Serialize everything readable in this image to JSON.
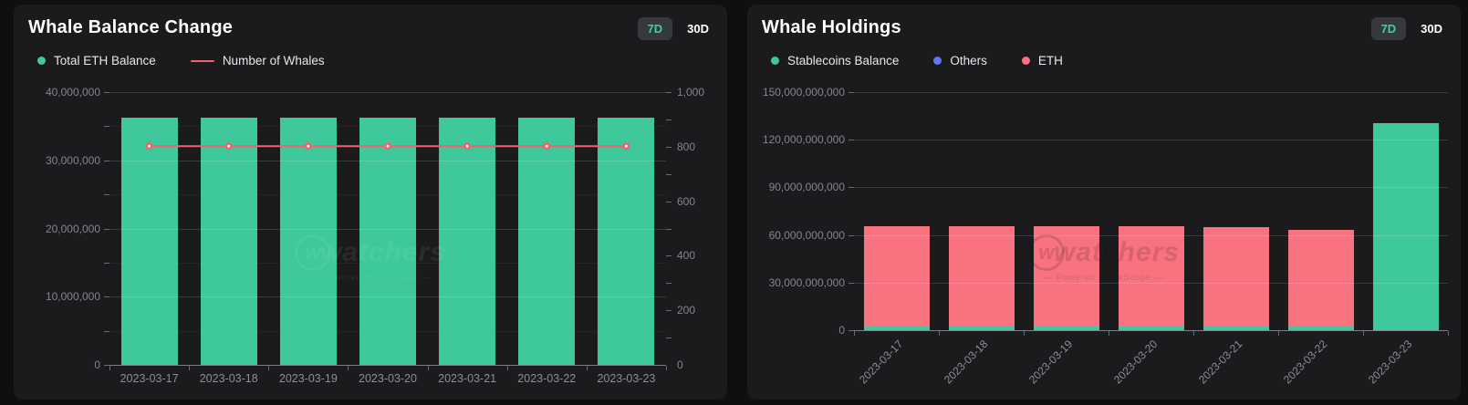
{
  "panels": [
    {
      "title": "Whale Balance Change",
      "buttons": [
        {
          "label": "7D",
          "active": true
        },
        {
          "label": "30D",
          "active": false
        }
      ],
      "legend": [
        {
          "label": "Total ETH Balance",
          "color": "#3ec89b",
          "icon": "dot"
        },
        {
          "label": "Number of Whales",
          "color": "#f4616f",
          "icon": "line"
        }
      ],
      "watermark": {
        "brand": "watchers",
        "sub": "— Powered By 0xScope —"
      }
    },
    {
      "title": "Whale Holdings",
      "buttons": [
        {
          "label": "7D",
          "active": true
        },
        {
          "label": "30D",
          "active": false
        }
      ],
      "legend": [
        {
          "label": "Stablecoins Balance",
          "color": "#3ec89b",
          "icon": "dot"
        },
        {
          "label": "Others",
          "color": "#5b79f2",
          "icon": "dot"
        },
        {
          "label": "ETH",
          "color": "#f8727f",
          "icon": "dot"
        }
      ],
      "watermark": {
        "brand": "watchers",
        "sub": "— Powered By 0xScope —"
      }
    }
  ],
  "chart_data": [
    {
      "type": "bar",
      "title": "Whale Balance Change",
      "categories": [
        "2023-03-17",
        "2023-03-18",
        "2023-03-19",
        "2023-03-20",
        "2023-03-21",
        "2023-03-22",
        "2023-03-23"
      ],
      "series": [
        {
          "name": "Total ETH Balance",
          "type": "bar",
          "axis": "left",
          "color": "#3ec89b",
          "values": [
            36280000,
            36280000,
            36280000,
            36280000,
            36280000,
            36280000,
            36280000
          ]
        },
        {
          "name": "Number of Whales",
          "type": "line",
          "axis": "right",
          "color": "#f4616f",
          "values": [
            802,
            802,
            802,
            802,
            802,
            802,
            802
          ]
        }
      ],
      "left_axis": {
        "min": 0,
        "max": 40000000,
        "tick_step": 10000000,
        "minor_step": 5000000
      },
      "right_axis": {
        "min": 0,
        "max": 1000,
        "tick_step": 200,
        "minor_step": 100
      },
      "grid": true,
      "legend_position": "top-left",
      "x_label_rotation": 0
    },
    {
      "type": "bar",
      "stacked": true,
      "title": "Whale Holdings",
      "categories": [
        "2023-03-17",
        "2023-03-18",
        "2023-03-19",
        "2023-03-20",
        "2023-03-21",
        "2023-03-22",
        "2023-03-23"
      ],
      "series": [
        {
          "name": "Stablecoins Balance",
          "type": "bar",
          "axis": "left",
          "color": "#3ec89b",
          "values": [
            3000000000,
            3000000000,
            3000000000,
            3000000000,
            3000000000,
            2900000000,
            130300000000
          ]
        },
        {
          "name": "Others",
          "type": "bar",
          "axis": "left",
          "color": "#5b79f2",
          "values": [
            0,
            0,
            0,
            0,
            0,
            0,
            0
          ]
        },
        {
          "name": "ETH",
          "type": "bar",
          "axis": "left",
          "color": "#f8727f",
          "values": [
            62400000000,
            62500000000,
            62400000000,
            62300000000,
            62200000000,
            60200000000,
            0
          ]
        }
      ],
      "left_axis": {
        "min": 0,
        "max": 150000000000,
        "tick_step": 30000000000
      },
      "grid": true,
      "legend_position": "top-left",
      "x_label_rotation": -45
    }
  ]
}
